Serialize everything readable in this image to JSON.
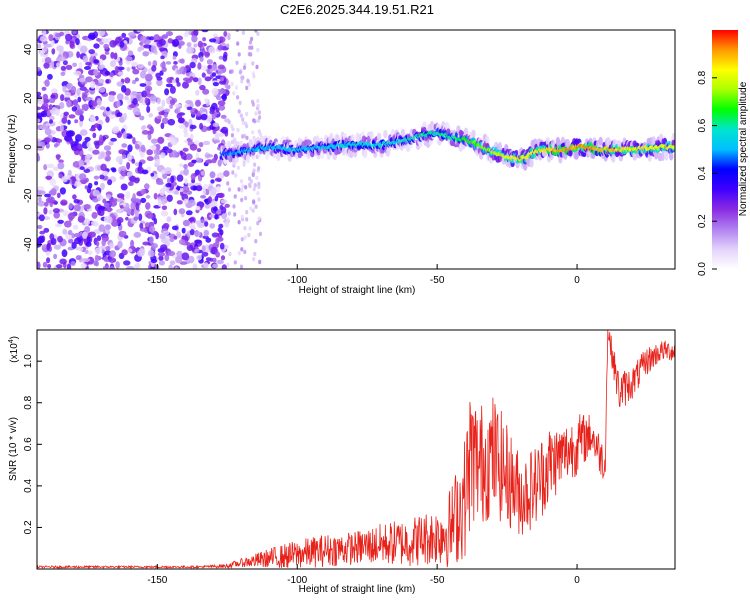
{
  "title": "C2E6.2025.344.19.51.R21",
  "colors": {
    "axis": "#000000",
    "snr_line": "#e8221a"
  },
  "chart_data": [
    {
      "type": "heatmap",
      "name": "spectrogram",
      "xlabel": "Height of straight line (km)",
      "ylabel": "Frequency (Hz)",
      "xlim": [
        -193,
        35
      ],
      "ylim": [
        -50,
        48
      ],
      "xticks": [
        -150,
        -100,
        -50,
        0
      ],
      "yticks": [
        -40,
        -20,
        0,
        20,
        40
      ],
      "colorbar": {
        "label": "Normalized spectral amplitude",
        "range": [
          0,
          1
        ],
        "ticks": [
          "0.0",
          "0.2",
          "0.4",
          "0.6",
          "0.8"
        ],
        "colormap": [
          "#ffffff",
          "#e3d2fb",
          "#b080f0",
          "#8a2be2",
          "#3f00ff",
          "#0000ff",
          "#00bfff",
          "#00e5d0",
          "#00ff00",
          "#aaff00",
          "#ffff00",
          "#ff9900",
          "#ff0000"
        ]
      },
      "noise_region": {
        "x_from": -193,
        "x_to": -125,
        "freq_from": -50,
        "freq_to": 48,
        "amplitude": 0.3
      },
      "signal_ridge": {
        "x": [
          -127,
          -120,
          -110,
          -100,
          -90,
          -80,
          -70,
          -60,
          -55,
          -50,
          -45,
          -40,
          -35,
          -30,
          -25,
          -20,
          -15,
          -10,
          -5,
          0,
          10,
          20,
          30,
          35
        ],
        "frequency": [
          -3,
          -2,
          0,
          -1,
          0,
          1,
          1,
          3,
          5,
          6,
          4,
          3,
          1,
          -2,
          -4,
          -5,
          -2,
          -1,
          -1,
          0,
          -1,
          -1,
          0,
          0
        ],
        "amplitude": [
          0.45,
          0.5,
          0.52,
          0.52,
          0.54,
          0.56,
          0.56,
          0.58,
          0.6,
          0.6,
          0.6,
          0.66,
          0.7,
          0.74,
          0.82,
          0.85,
          0.82,
          0.88,
          0.9,
          0.92,
          0.88,
          0.85,
          0.82,
          0.8
        ]
      }
    },
    {
      "type": "line",
      "name": "snr",
      "xlabel": "Height of straight line (km)",
      "ylabel": "SNR (10 * v/v)",
      "y_scale_label": "(x10",
      "y_scale_exp": "4",
      "y_scale_close": ")",
      "xlim": [
        -193,
        35
      ],
      "ylim": [
        0,
        1.15
      ],
      "xticks": [
        -150,
        -100,
        -50,
        0
      ],
      "yticks": [
        "0.2",
        "0.4",
        "0.6",
        "0.8",
        "1.0"
      ],
      "x": [
        -193,
        -180,
        -165,
        -150,
        -135,
        -125,
        -120,
        -110,
        -100,
        -90,
        -80,
        -70,
        -60,
        -50,
        -45,
        -40,
        -38,
        -35,
        -30,
        -25,
        -20,
        -15,
        -10,
        -5,
        0,
        5,
        10,
        11,
        15,
        20,
        25,
        30,
        35
      ],
      "values": [
        0.01,
        0.01,
        0.01,
        0.01,
        0.01,
        0.015,
        0.03,
        0.05,
        0.07,
        0.09,
        0.1,
        0.12,
        0.13,
        0.16,
        0.2,
        0.35,
        0.55,
        0.5,
        0.55,
        0.45,
        0.35,
        0.4,
        0.5,
        0.55,
        0.6,
        0.65,
        0.5,
        1.15,
        0.85,
        0.9,
        1.0,
        1.05,
        1.05
      ],
      "spread": [
        0.005,
        0.005,
        0.005,
        0.005,
        0.005,
        0.01,
        0.02,
        0.05,
        0.07,
        0.08,
        0.08,
        0.1,
        0.12,
        0.14,
        0.2,
        0.3,
        0.35,
        0.3,
        0.3,
        0.25,
        0.2,
        0.2,
        0.2,
        0.15,
        0.15,
        0.1,
        0.1,
        0.05,
        0.1,
        0.08,
        0.07,
        0.05,
        0.05
      ]
    }
  ]
}
